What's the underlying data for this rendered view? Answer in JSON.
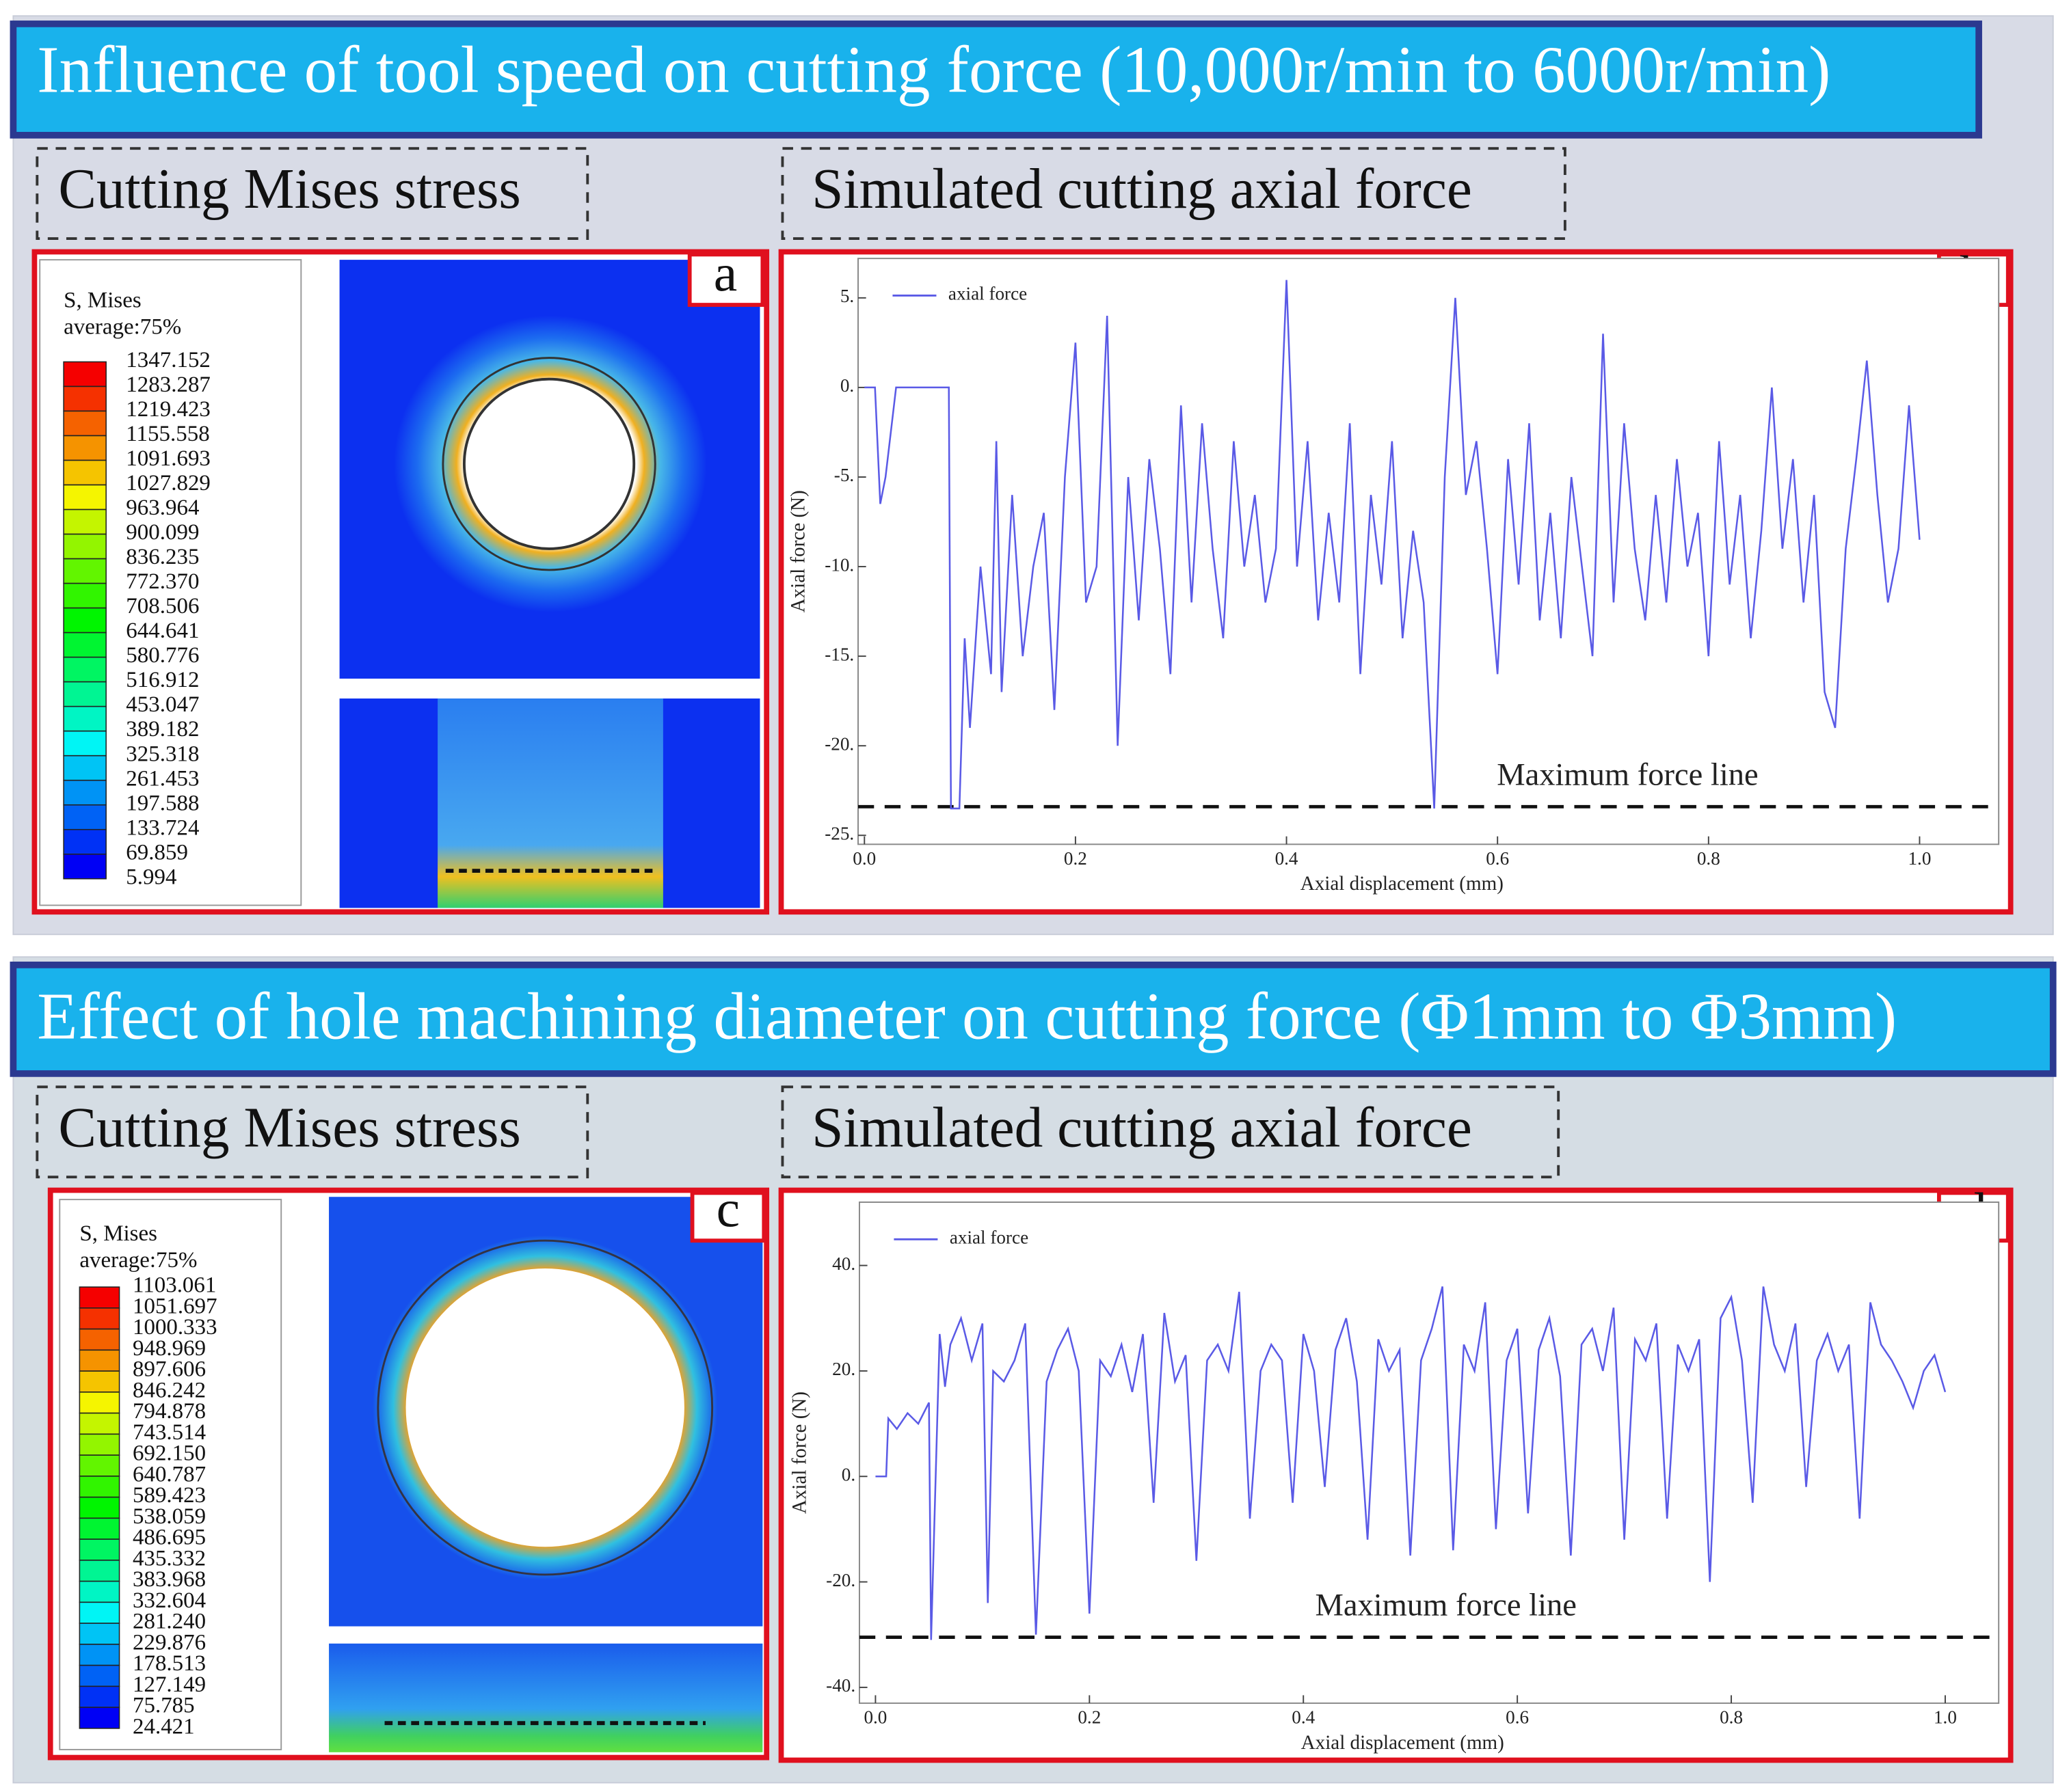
{
  "panels": [
    {
      "title": "Influence of tool speed on cutting force (10,000r/min to 6000r/min)",
      "left_label": "Cutting Mises stress",
      "right_label": "Simulated cutting axial force",
      "image_letter": "a",
      "chart_letter": "b",
      "colorbar": {
        "title": "S, Mises",
        "subtitle": "average:75%",
        "labels": [
          "1347.152",
          "1283.287",
          "1219.423",
          "1155.558",
          "1091.693",
          "1027.829",
          "963.964",
          "900.099",
          "836.235",
          "772.370",
          "708.506",
          "644.641",
          "580.776",
          "516.912",
          "453.047",
          "389.182",
          "325.318",
          "261.453",
          "197.588",
          "133.724",
          "69.859",
          "5.994"
        ]
      }
    },
    {
      "title": "Effect of hole machining diameter on cutting force (Φ1mm to Φ3mm)",
      "left_label": "Cutting Mises stress",
      "right_label": "Simulated cutting axial force",
      "image_letter": "c",
      "chart_letter": "d",
      "colorbar": {
        "title": "S, Mises",
        "subtitle": "average:75%",
        "labels": [
          "1103.061",
          "1051.697",
          "1000.333",
          "948.969",
          "897.606",
          "846.242",
          "794.878",
          "743.514",
          "692.150",
          "640.787",
          "589.423",
          "538.059",
          "486.695",
          "435.332",
          "383.968",
          "332.604",
          "281.240",
          "229.876",
          "178.513",
          "127.149",
          "75.785",
          "24.421"
        ]
      }
    }
  ],
  "chart_data": [
    {
      "type": "line",
      "xlabel": "Axial displacement (mm)",
      "ylabel": "Axial force (N)",
      "legend": "upper left",
      "x": [
        0,
        0.01,
        0.015,
        0.02,
        0.03,
        0.04,
        0.05,
        0.06,
        0.075,
        0.08,
        0.082,
        0.09,
        0.095,
        0.1,
        0.11,
        0.12,
        0.125,
        0.13,
        0.14,
        0.15,
        0.16,
        0.17,
        0.18,
        0.19,
        0.2,
        0.21,
        0.22,
        0.23,
        0.24,
        0.25,
        0.26,
        0.27,
        0.28,
        0.29,
        0.3,
        0.31,
        0.32,
        0.33,
        0.34,
        0.35,
        0.36,
        0.37,
        0.38,
        0.39,
        0.4,
        0.41,
        0.42,
        0.43,
        0.44,
        0.45,
        0.46,
        0.47,
        0.48,
        0.49,
        0.5,
        0.51,
        0.52,
        0.53,
        0.54,
        0.55,
        0.56,
        0.57,
        0.58,
        0.59,
        0.6,
        0.61,
        0.62,
        0.63,
        0.64,
        0.65,
        0.66,
        0.67,
        0.68,
        0.69,
        0.7,
        0.71,
        0.72,
        0.73,
        0.74,
        0.75,
        0.76,
        0.77,
        0.78,
        0.79,
        0.8,
        0.81,
        0.82,
        0.83,
        0.84,
        0.85,
        0.86,
        0.87,
        0.88,
        0.89,
        0.9,
        0.91,
        0.92,
        0.93,
        0.94,
        0.95,
        0.96,
        0.97,
        0.98,
        0.99,
        1.0
      ],
      "series": [
        {
          "name": "axial force",
          "color": "#5a5ae6",
          "values": [
            0,
            0,
            -6.5,
            -5,
            0,
            0,
            0,
            0,
            0,
            0,
            -23.5,
            -23.5,
            -14,
            -19,
            -10,
            -16,
            -3,
            -17,
            -6,
            -15,
            -10,
            -7,
            -18,
            -5,
            2.5,
            -12,
            -10,
            4,
            -20,
            -5,
            -13,
            -4,
            -9,
            -16,
            -1,
            -12,
            -2,
            -9,
            -14,
            -3,
            -10,
            -6,
            -12,
            -9,
            6,
            -10,
            -3,
            -13,
            -7,
            -12,
            -2,
            -16,
            -6,
            -11,
            -3,
            -14,
            -8,
            -12,
            -23.5,
            -5,
            5,
            -6,
            -3,
            -9,
            -16,
            -4,
            -11,
            -2,
            -13,
            -7,
            -14,
            -5,
            -10,
            -15,
            3,
            -12,
            -2,
            -9,
            -13,
            -6,
            -12,
            -4,
            -10,
            -7,
            -15,
            -3,
            -11,
            -6,
            -14,
            -8,
            0,
            -9,
            -4,
            -12,
            -6,
            -17,
            -19,
            -9,
            -4,
            1.5,
            -6,
            -12,
            -9,
            -1,
            -8.5
          ]
        }
      ],
      "xlim": [
        -0.006,
        1.075
      ],
      "ylim": [
        -25.5,
        7.2
      ],
      "xticks": [
        {
          "value": 0,
          "label": "0.0"
        },
        0.2,
        0.4,
        0.6,
        0.8,
        {
          "value": 1,
          "label": "1.0"
        }
      ],
      "yticks": [
        {
          "value": 5,
          "label": "5."
        },
        {
          "value": 0,
          "label": "0."
        },
        {
          "value": -5,
          "label": "-5."
        },
        {
          "value": -10,
          "label": "-10."
        },
        {
          "value": -15,
          "label": "-15."
        },
        {
          "value": -20,
          "label": "-20."
        },
        {
          "value": -25,
          "label": "-25."
        }
      ],
      "max_force_line": {
        "value": -23.4,
        "label": "Maximum force line"
      }
    },
    {
      "type": "line",
      "xlabel": "Axial displacement (mm)",
      "ylabel": "Axial force (N)",
      "legend": "upper left",
      "x": [
        0,
        0.01,
        0.012,
        0.02,
        0.03,
        0.04,
        0.05,
        0.052,
        0.06,
        0.065,
        0.07,
        0.08,
        0.09,
        0.1,
        0.105,
        0.11,
        0.12,
        0.13,
        0.14,
        0.15,
        0.16,
        0.17,
        0.18,
        0.19,
        0.2,
        0.21,
        0.22,
        0.23,
        0.24,
        0.25,
        0.26,
        0.27,
        0.28,
        0.29,
        0.3,
        0.31,
        0.32,
        0.33,
        0.34,
        0.35,
        0.36,
        0.37,
        0.38,
        0.39,
        0.4,
        0.41,
        0.42,
        0.43,
        0.44,
        0.45,
        0.46,
        0.47,
        0.48,
        0.49,
        0.5,
        0.51,
        0.52,
        0.53,
        0.54,
        0.55,
        0.56,
        0.57,
        0.58,
        0.59,
        0.6,
        0.61,
        0.62,
        0.63,
        0.64,
        0.65,
        0.66,
        0.67,
        0.68,
        0.69,
        0.7,
        0.71,
        0.72,
        0.73,
        0.74,
        0.75,
        0.76,
        0.77,
        0.78,
        0.79,
        0.8,
        0.81,
        0.82,
        0.83,
        0.84,
        0.85,
        0.86,
        0.87,
        0.88,
        0.89,
        0.9,
        0.91,
        0.92,
        0.93,
        0.94,
        0.95,
        0.96,
        0.97,
        0.98,
        0.99,
        1.0
      ],
      "series": [
        {
          "name": "axial force",
          "color": "#5a5ae6",
          "values": [
            0,
            0,
            11,
            9,
            12,
            10,
            14,
            -31,
            27,
            17,
            25,
            30,
            22,
            29,
            -24,
            20,
            18,
            22,
            29,
            -30,
            18,
            24,
            28,
            20,
            -26,
            22,
            19,
            25,
            16,
            27,
            -5,
            31,
            18,
            23,
            -16,
            22,
            25,
            20,
            35,
            -8,
            20,
            25,
            22,
            -5,
            27,
            20,
            -2,
            24,
            30,
            18,
            -12,
            26,
            20,
            24,
            -15,
            22,
            28,
            36,
            -14,
            25,
            20,
            33,
            -10,
            22,
            28,
            -7,
            24,
            30,
            19,
            -15,
            25,
            28,
            20,
            32,
            -12,
            26,
            22,
            29,
            -8,
            25,
            20,
            26,
            -20,
            30,
            34,
            22,
            -5,
            36,
            25,
            20,
            29,
            -2,
            22,
            27,
            20,
            25,
            -8,
            33,
            25,
            22,
            18,
            13,
            20,
            23,
            16
          ]
        }
      ],
      "xlim": [
        -0.015,
        1.05
      ],
      "ylim": [
        -43,
        52
      ],
      "xticks": [
        {
          "value": 0,
          "label": "0.0"
        },
        0.2,
        0.4,
        0.6,
        0.8,
        {
          "value": 1,
          "label": "1.0"
        }
      ],
      "yticks": [
        {
          "value": 40,
          "label": "40."
        },
        {
          "value": 20,
          "label": "20."
        },
        {
          "value": 0,
          "label": "0."
        },
        {
          "value": -20,
          "label": "-20."
        },
        {
          "value": -40,
          "label": "-40."
        }
      ],
      "max_force_line": {
        "value": -30.5,
        "label": "Maximum force line"
      }
    }
  ]
}
